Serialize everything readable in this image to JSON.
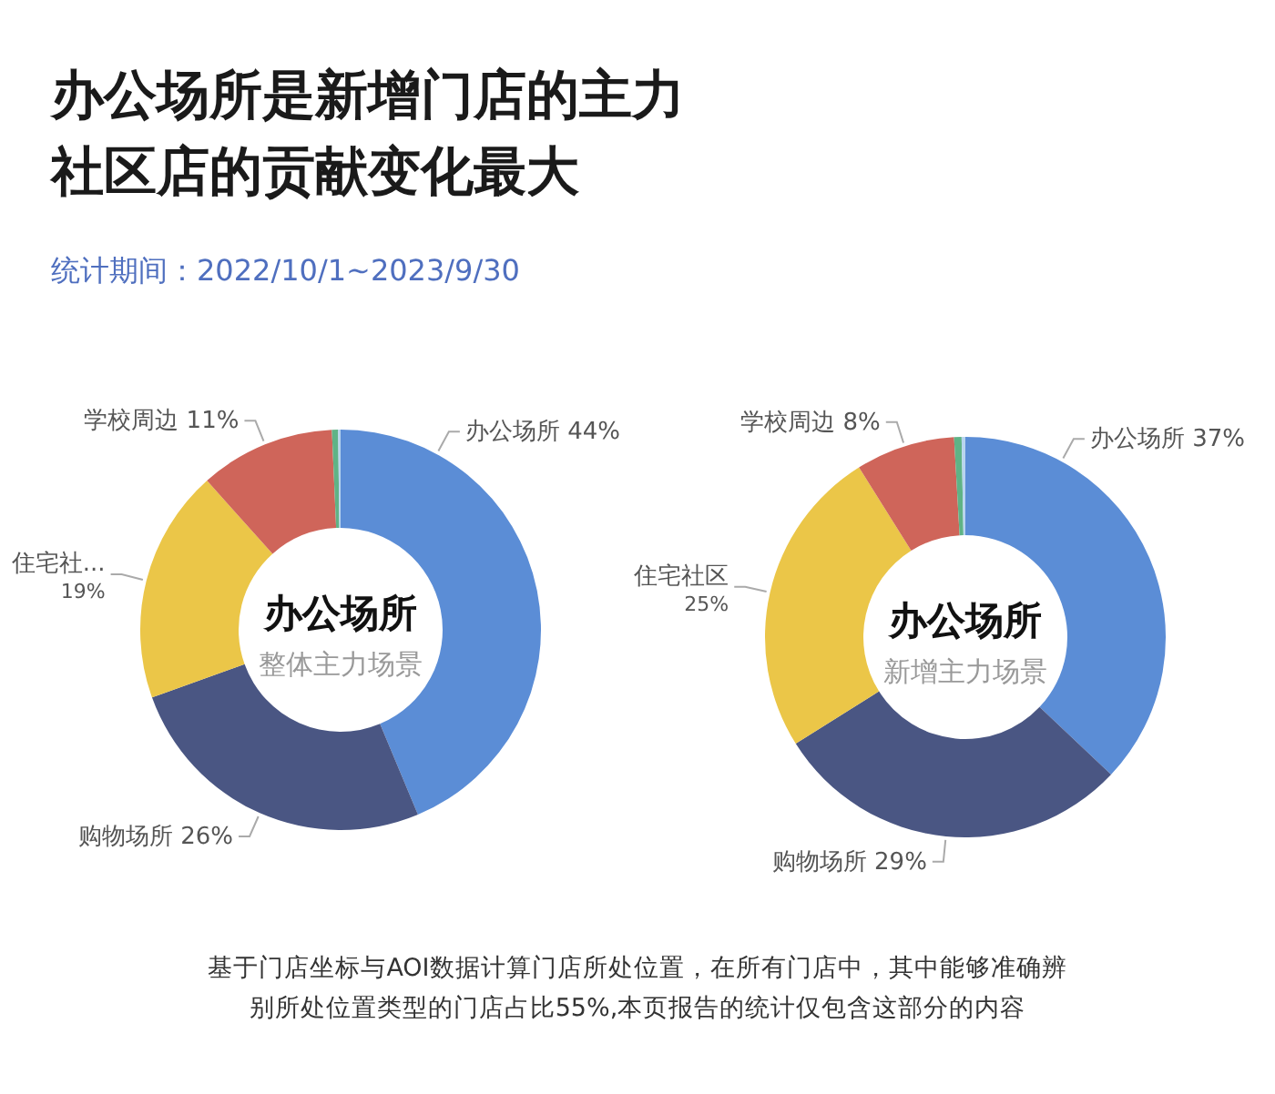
{
  "chart_data": [
    {
      "type": "donut",
      "title": "办公场所是新增门店的主力社区店的贡献变化最大",
      "subtitle": "统计期间：2022/10/1~2023/9/30",
      "categories": [
        "办公场所",
        "购物场所",
        "住宅社...",
        "学校周边",
        null,
        null
      ],
      "values": [
        44,
        26,
        19,
        11,
        0.5,
        0.2
      ],
      "value_labels": [
        "44%",
        "26%",
        "19%",
        "11%",
        null,
        null
      ],
      "colors": [
        "#5b8dd6",
        "#4a5683",
        "#ebc648",
        "#cf655a",
        "#5fb386",
        "#b8d4ee"
      ],
      "annotations": [
        "办公场所",
        "整体主力场景"
      ]
    },
    {
      "type": "donut",
      "categories": [
        "办公场所",
        "购物场所",
        "住宅社区",
        "学校周边",
        null,
        null
      ],
      "values": [
        37,
        29,
        25,
        8,
        0.6,
        0.3
      ],
      "value_labels": [
        "37%",
        "29%",
        "25%",
        "8%",
        null,
        null
      ],
      "colors": [
        "#5b8dd6",
        "#4a5683",
        "#ebc648",
        "#cf655a",
        "#5fb386",
        "#b8d4ee"
      ],
      "annotations": [
        "办公场所",
        "新增主力场景",
        "基于门店坐标与AOI数据计算门店所处位置，在所有门店中，其中能够准确辨别所处位置类型的门店占比55%,本页报告的统计仅包含这部分的内容"
      ]
    }
  ]
}
